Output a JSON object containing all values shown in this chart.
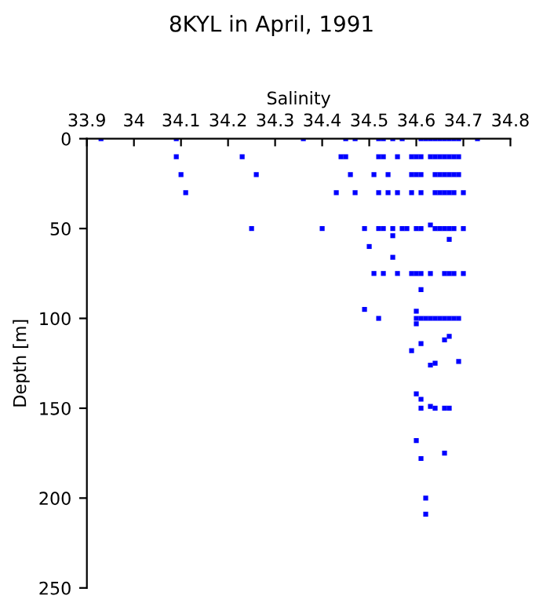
{
  "chart_data": {
    "type": "scatter",
    "title": "8KYL in April, 1991",
    "xlabel": "Salinity",
    "ylabel": "Depth [m]",
    "xlim": [
      33.9,
      34.8
    ],
    "xticks": [
      33.9,
      34,
      34.1,
      34.2,
      34.3,
      34.4,
      34.5,
      34.6,
      34.7,
      34.8
    ],
    "ylim": [
      250,
      0
    ],
    "yticks": [
      0,
      50,
      100,
      150,
      200,
      250
    ],
    "grid": false,
    "marker": "square",
    "series": [
      {
        "color": "#0000ff",
        "x": [
          33.93,
          34.09,
          34.36,
          34.45,
          34.47,
          34.52,
          34.53,
          34.55,
          34.57,
          34.61,
          34.62,
          34.63,
          34.64,
          34.65,
          34.66,
          34.67,
          34.68,
          34.69,
          34.73,
          34.09,
          34.23,
          34.44,
          34.45,
          34.52,
          34.53,
          34.56,
          34.59,
          34.6,
          34.61,
          34.63,
          34.64,
          34.65,
          34.66,
          34.67,
          34.68,
          34.69,
          34.1,
          34.26,
          34.46,
          34.51,
          34.54,
          34.59,
          34.6,
          34.61,
          34.64,
          34.65,
          34.66,
          34.67,
          34.68,
          34.69,
          34.11,
          34.43,
          34.47,
          34.52,
          34.54,
          34.56,
          34.59,
          34.61,
          34.64,
          34.65,
          34.66,
          34.67,
          34.68,
          34.7,
          34.25,
          34.4,
          34.49,
          34.52,
          34.53,
          34.55,
          34.57,
          34.58,
          34.6,
          34.61,
          34.64,
          34.65,
          34.66,
          34.67,
          34.68,
          34.7,
          34.63,
          34.55,
          34.67,
          34.5,
          34.55,
          34.51,
          34.53,
          34.56,
          34.59,
          34.6,
          34.61,
          34.63,
          34.66,
          34.67,
          34.68,
          34.7,
          34.61,
          34.49,
          34.6,
          34.52,
          34.6,
          34.61,
          34.62,
          34.63,
          34.64,
          34.65,
          34.66,
          34.67,
          34.68,
          34.69,
          34.6,
          34.67,
          34.66,
          34.61,
          34.59,
          34.69,
          34.64,
          34.63,
          34.6,
          34.61,
          34.63,
          34.61,
          34.64,
          34.66,
          34.67,
          34.6,
          34.66,
          34.61,
          34.62,
          34.62
        ],
        "values": [
          0,
          0,
          0,
          0,
          0,
          0,
          0,
          0,
          0,
          0,
          0,
          0,
          0,
          0,
          0,
          0,
          0,
          0,
          0,
          10,
          10,
          10,
          10,
          10,
          10,
          10,
          10,
          10,
          10,
          10,
          10,
          10,
          10,
          10,
          10,
          10,
          20,
          20,
          20,
          20,
          20,
          20,
          20,
          20,
          20,
          20,
          20,
          20,
          20,
          20,
          30,
          30,
          30,
          30,
          30,
          30,
          30,
          30,
          30,
          30,
          30,
          30,
          30,
          30,
          50,
          50,
          50,
          50,
          50,
          50,
          50,
          50,
          50,
          50,
          50,
          50,
          50,
          50,
          50,
          50,
          48,
          54,
          56,
          60,
          66,
          75,
          75,
          75,
          75,
          75,
          75,
          75,
          75,
          75,
          75,
          75,
          84,
          95,
          96,
          100,
          100,
          100,
          100,
          100,
          100,
          100,
          100,
          100,
          100,
          100,
          103,
          110,
          112,
          114,
          118,
          124,
          125,
          126,
          142,
          145,
          149,
          150,
          150,
          150,
          150,
          168,
          175,
          178,
          200,
          209
        ]
      }
    ]
  }
}
